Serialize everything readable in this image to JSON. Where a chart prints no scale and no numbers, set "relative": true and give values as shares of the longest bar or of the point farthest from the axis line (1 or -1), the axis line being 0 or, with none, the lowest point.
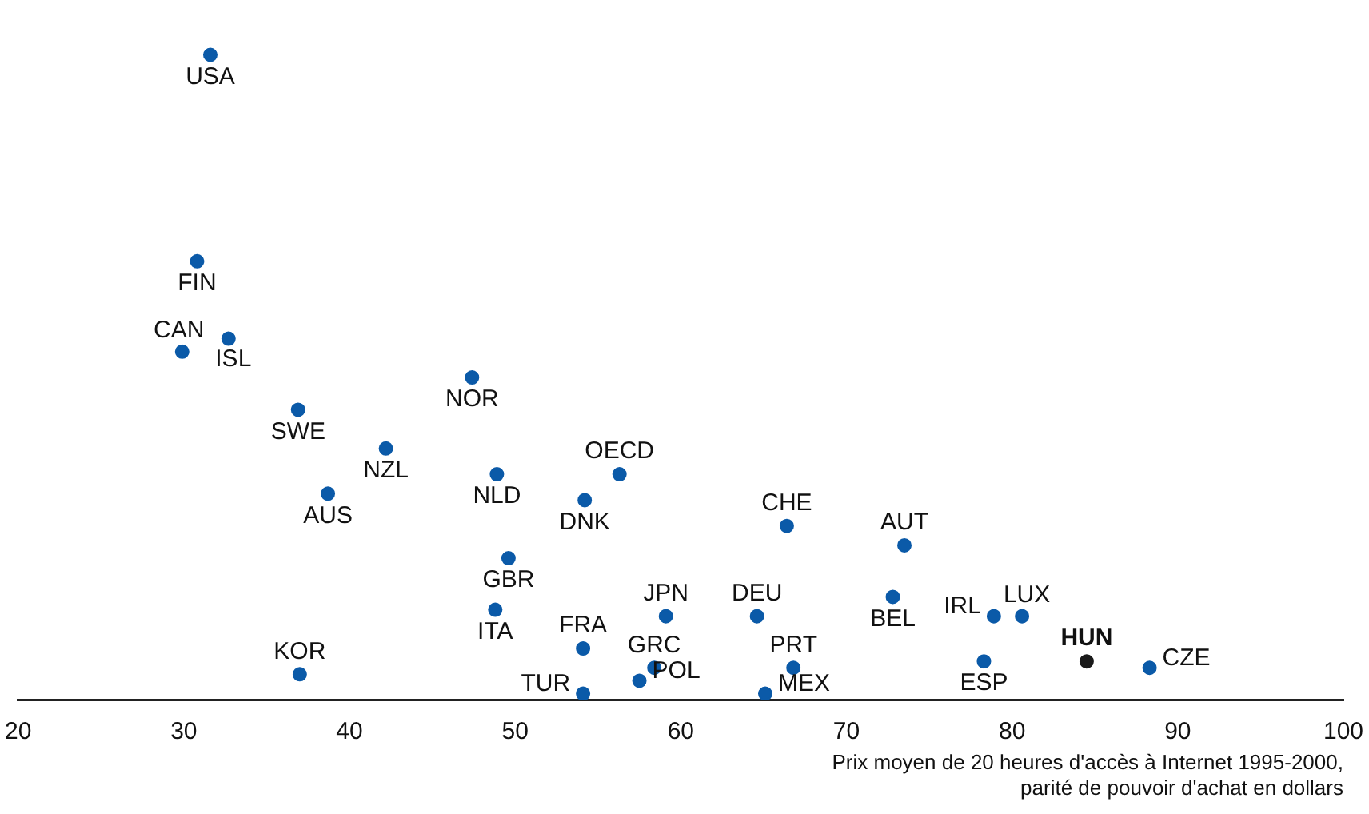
{
  "chart_data": {
    "type": "scatter",
    "relative": true,
    "xlabel": "Prix moyen de 20 heures d'accès à Internet 1995-2000,\nparité de pouvoir d'achat en dollars",
    "xlim": [
      20,
      100
    ],
    "xticks": [
      20,
      30,
      40,
      50,
      60,
      70,
      80,
      90,
      100
    ],
    "grid": false,
    "legend": false,
    "marker": "circle",
    "x": [
      31.6,
      30.8,
      29.9,
      32.7,
      36.9,
      47.4,
      42.2,
      38.7,
      48.9,
      56.3,
      54.2,
      66.4,
      73.5,
      49.6,
      72.8,
      59.1,
      64.6,
      48.8,
      78.9,
      80.6,
      54.1,
      37.0,
      58.4,
      66.8,
      78.3,
      84.5,
      88.3,
      54.1,
      57.5,
      65.1
    ],
    "values": [
      1,
      0.68,
      0.54,
      0.56,
      0.45,
      0.5,
      0.39,
      0.32,
      0.35,
      0.35,
      0.31,
      0.27,
      0.24,
      0.22,
      0.16,
      0.13,
      0.13,
      0.14,
      0.13,
      0.13,
      0.08,
      0.04,
      0.05,
      0.05,
      0.06,
      0.06,
      0.05,
      0.01,
      0.03,
      0.01
    ],
    "colors": [
      "#0b5aa8",
      "#0b5aa8",
      "#0b5aa8",
      "#0b5aa8",
      "#0b5aa8",
      "#0b5aa8",
      "#0b5aa8",
      "#0b5aa8",
      "#0b5aa8",
      "#0b5aa8",
      "#0b5aa8",
      "#0b5aa8",
      "#0b5aa8",
      "#0b5aa8",
      "#0b5aa8",
      "#0b5aa8",
      "#0b5aa8",
      "#0b5aa8",
      "#0b5aa8",
      "#0b5aa8",
      "#0b5aa8",
      "#0b5aa8",
      "#0b5aa8",
      "#0b5aa8",
      "#0b5aa8",
      "#1a1a1a",
      "#0b5aa8",
      "#0b5aa8",
      "#0b5aa8",
      "#0b5aa8"
    ],
    "annotations": [
      {
        "text": "USA",
        "x": 31.6,
        "y": 1
      },
      {
        "text": "FIN",
        "x": 30.8,
        "y": 0.68
      },
      {
        "text": "CAN",
        "x": 29.9,
        "y": 0.54
      },
      {
        "text": "ISL",
        "x": 32.7,
        "y": 0.56
      },
      {
        "text": "SWE",
        "x": 36.9,
        "y": 0.45
      },
      {
        "text": "NOR",
        "x": 47.4,
        "y": 0.5
      },
      {
        "text": "NZL",
        "x": 42.2,
        "y": 0.39
      },
      {
        "text": "AUS",
        "x": 38.7,
        "y": 0.32
      },
      {
        "text": "NLD",
        "x": 48.9,
        "y": 0.35
      },
      {
        "text": "OECD",
        "x": 56.3,
        "y": 0.35
      },
      {
        "text": "DNK",
        "x": 54.2,
        "y": 0.31
      },
      {
        "text": "CHE",
        "x": 66.4,
        "y": 0.27
      },
      {
        "text": "AUT",
        "x": 73.5,
        "y": 0.24
      },
      {
        "text": "GBR",
        "x": 49.6,
        "y": 0.22
      },
      {
        "text": "BEL",
        "x": 72.8,
        "y": 0.16
      },
      {
        "text": "JPN",
        "x": 59.1,
        "y": 0.13
      },
      {
        "text": "DEU",
        "x": 64.6,
        "y": 0.13
      },
      {
        "text": "ITA",
        "x": 48.8,
        "y": 0.14
      },
      {
        "text": "IRL",
        "x": 78.9,
        "y": 0.13
      },
      {
        "text": "LUX",
        "x": 80.6,
        "y": 0.13
      },
      {
        "text": "FRA",
        "x": 54.1,
        "y": 0.08
      },
      {
        "text": "KOR",
        "x": 37.0,
        "y": 0.04
      },
      {
        "text": "GRC",
        "x": 58.4,
        "y": 0.05
      },
      {
        "text": "PRT",
        "x": 66.8,
        "y": 0.05
      },
      {
        "text": "ESP",
        "x": 78.3,
        "y": 0.06
      },
      {
        "text": "HUN",
        "x": 84.5,
        "y": 0.06
      },
      {
        "text": "CZE",
        "x": 88.3,
        "y": 0.05
      },
      {
        "text": "TUR",
        "x": 54.1,
        "y": 0.01
      },
      {
        "text": "POL",
        "x": 57.5,
        "y": 0.03
      },
      {
        "text": "MEX",
        "x": 65.1,
        "y": 0.01
      }
    ]
  }
}
